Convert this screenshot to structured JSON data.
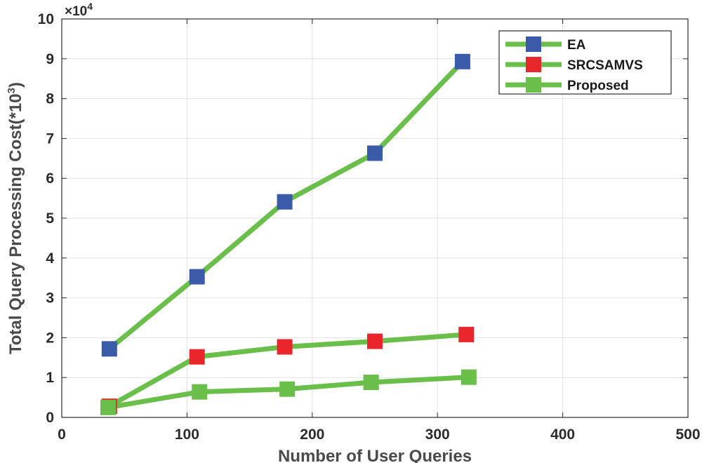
{
  "chart_data": {
    "type": "line",
    "title": "",
    "xlabel": "Number of User Queries",
    "ylabel_main": "Total Query Processing Cost(*10",
    "ylabel_sup": "3",
    "ylabel_close": ")",
    "y_exponent_base": "×10",
    "y_exponent_power": "4",
    "xlim": [
      0,
      500
    ],
    "ylim": [
      0,
      10
    ],
    "xticks": [
      0,
      100,
      200,
      300,
      400,
      500
    ],
    "yticks": [
      0,
      1,
      2,
      3,
      4,
      5,
      6,
      7,
      8,
      9,
      10
    ],
    "grid": true,
    "legend_location": "top-right",
    "line_color": "#6abf4b",
    "series": [
      {
        "name": "EA",
        "marker_color": "#3a5ba8",
        "x": [
          38,
          108,
          178,
          250,
          320
        ],
        "values": [
          1.72,
          3.53,
          5.41,
          6.63,
          8.93
        ]
      },
      {
        "name": "SRCSAMVS",
        "marker_color": "#e8262b",
        "x": [
          38,
          108,
          178,
          250,
          323
        ],
        "values": [
          0.28,
          1.52,
          1.77,
          1.91,
          2.08
        ]
      },
      {
        "name": "Proposed",
        "marker_color": "#6abf4b",
        "x": [
          37,
          110,
          180,
          247,
          325
        ],
        "values": [
          0.25,
          0.64,
          0.71,
          0.88,
          1.01
        ]
      }
    ]
  }
}
